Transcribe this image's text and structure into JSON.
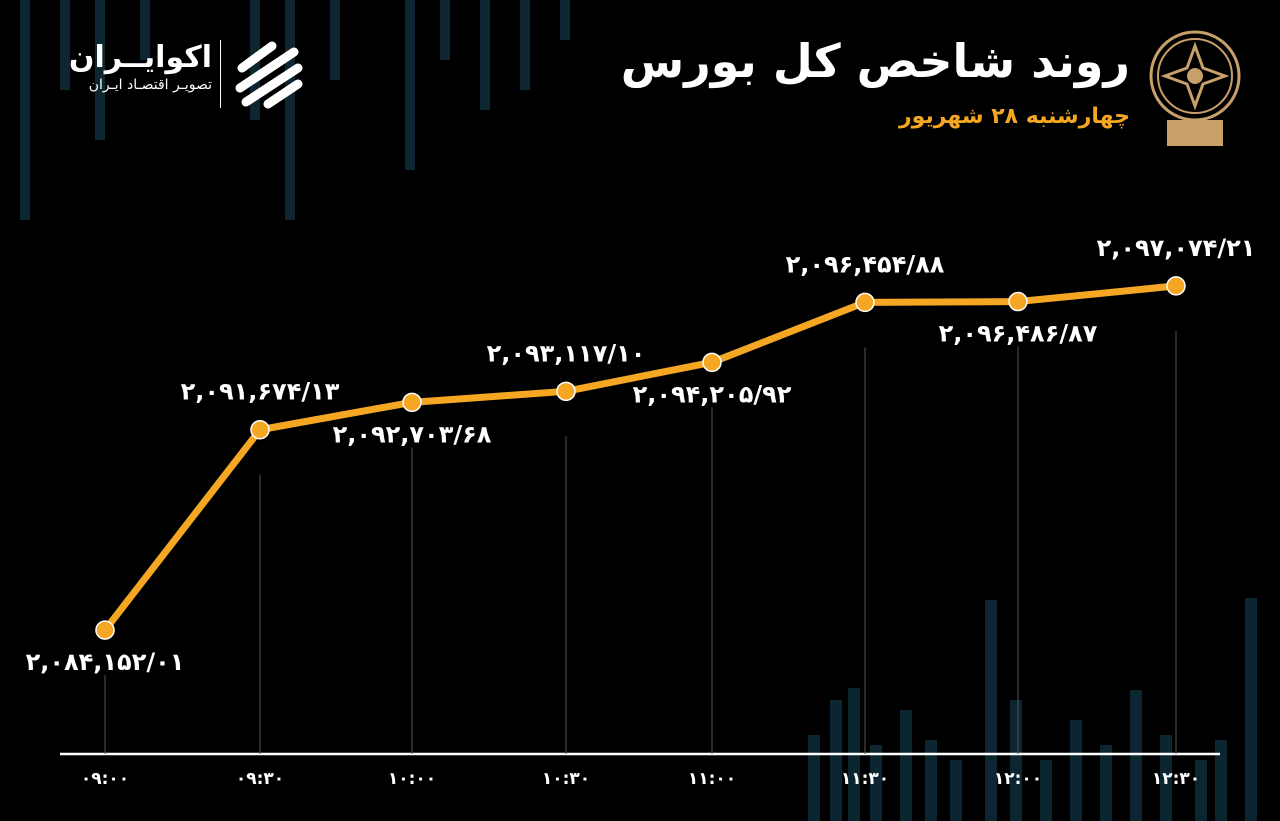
{
  "header": {
    "title": "روند شاخص کل بورس",
    "subtitle": "چهارشنبه ۲۸ شهریور"
  },
  "brand": {
    "name": "اکوایــران",
    "tagline": "تصویـر اقتصـاد ایـران"
  },
  "colors": {
    "background": "#000000",
    "line": "#f5a623",
    "marker": "#f5a623",
    "text": "#ffffff",
    "accent": "#f5a623",
    "decoration": "#0f2a33"
  },
  "chart_data": {
    "type": "line",
    "title": "روند شاخص کل بورس",
    "xlabel": "",
    "ylabel": "",
    "grid": false,
    "ylim": [
      2079500,
      2100300
    ],
    "categories": [
      "09:00",
      "09:30",
      "10:00",
      "10:30",
      "11:00",
      "11:30",
      "12:00",
      "12:30"
    ],
    "tick_labels": [
      "۰۹:۰۰",
      "۰۹:۳۰",
      "۱۰:۰۰",
      "۱۰:۳۰",
      "۱۱:۰۰",
      "۱۱:۳۰",
      "۱۲:۰۰",
      "۱۲:۳۰"
    ],
    "values": [
      2084152.01,
      2091674.13,
      2092703.68,
      2093117.1,
      2094205.92,
      2096454.88,
      2096486.87,
      2097074.21
    ],
    "data_labels": [
      "۲,۰۸۴,۱۵۲/۰۱",
      "۲,۰۹۱,۶۷۴/۱۳",
      "۲,۰۹۲,۷۰۳/۶۸",
      "۲,۰۹۳,۱۱۷/۱۰",
      "۲,۰۹۴,۲۰۵/۹۲",
      "۲,۰۹۶,۴۵۴/۸۸",
      "۲,۰۹۶,۴۸۶/۸۷",
      "۲,۰۹۷,۰۷۴/۲۱"
    ]
  }
}
